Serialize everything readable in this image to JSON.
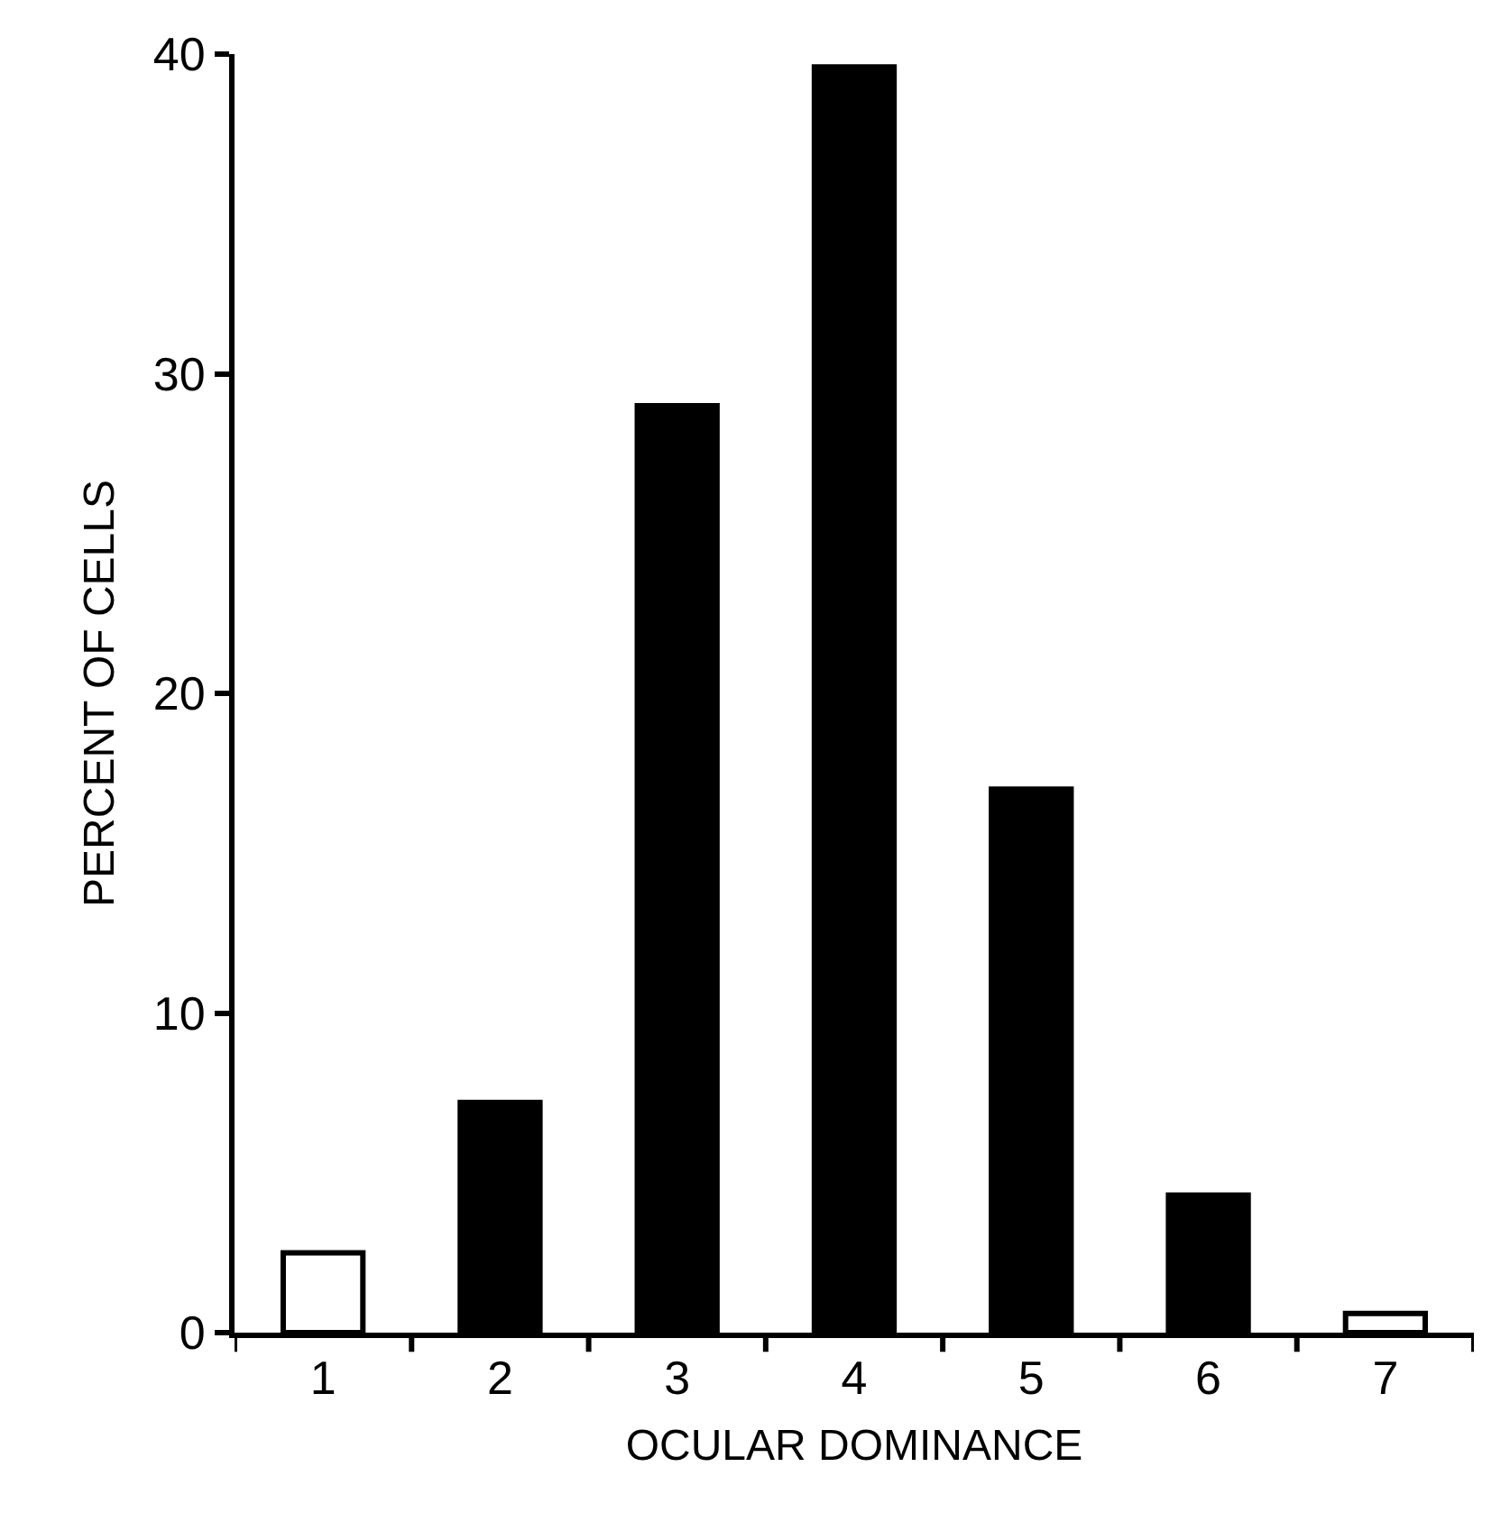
{
  "chart_data": {
    "type": "bar",
    "xlabel": "OCULAR DOMINANCE",
    "ylabel": "PERCENT OF CELLS",
    "categories": [
      "1",
      "2",
      "3",
      "4",
      "5",
      "6",
      "7"
    ],
    "values": [
      2.5,
      7.2,
      29.0,
      39.6,
      17.0,
      4.3,
      0.6
    ],
    "colors": [
      "#ffffff",
      "#000000",
      "#000000",
      "#000000",
      "#000000",
      "#000000",
      "#ffffff"
    ],
    "ylim": [
      0,
      40
    ],
    "yticks": [
      0,
      10,
      20,
      30,
      40
    ]
  }
}
